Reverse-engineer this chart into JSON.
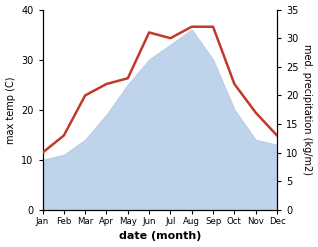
{
  "months": [
    "Jan",
    "Feb",
    "Mar",
    "Apr",
    "May",
    "Jun",
    "Jul",
    "Aug",
    "Sep",
    "Oct",
    "Nov",
    "Dec"
  ],
  "temperature": [
    10,
    11,
    14,
    19,
    25,
    30,
    33,
    36,
    30,
    20,
    14,
    13
  ],
  "precipitation": [
    10,
    13,
    20,
    22,
    23,
    31,
    30,
    32,
    32,
    22,
    17,
    13
  ],
  "temp_color": "#b8cfe8",
  "precip_color": "#c0392b",
  "temp_ylim": [
    0,
    40
  ],
  "precip_ylim": [
    0,
    35
  ],
  "temp_yticks": [
    0,
    10,
    20,
    30,
    40
  ],
  "precip_yticks": [
    0,
    5,
    10,
    15,
    20,
    25,
    30,
    35
  ],
  "xlabel": "date (month)",
  "ylabel_left": "max temp (C)",
  "ylabel_right": "med. precipitation (kg/m2)",
  "bg_color": "#ffffff",
  "title": ""
}
